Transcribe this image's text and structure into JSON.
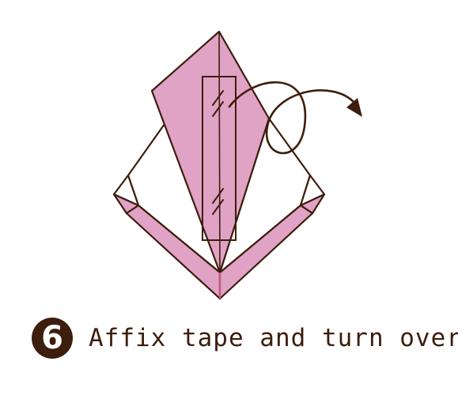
{
  "step": {
    "number": "6",
    "instruction": "Affix tape and turn over"
  },
  "colors": {
    "outline": "#3d1d0c",
    "paper_color": "#e0a3c5",
    "crease_pink": "#e35a8f",
    "badge_bg": "#3d1d0c",
    "background": "#ffffff"
  },
  "icons": [
    "tape-strip-icon",
    "turn-over-arrow-icon"
  ]
}
